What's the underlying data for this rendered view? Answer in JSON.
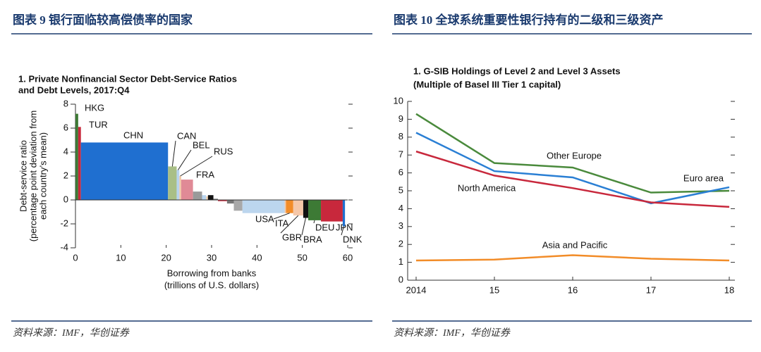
{
  "chart_data": [
    {
      "type": "mekko",
      "header": "图表 9 银行面临较高偿债率的国家",
      "source": "资料来源：IMF，华创证券",
      "title": [
        "1. Private Nonfinancial Sector Debt-Service Ratios",
        "and Debt Levels, 2017:Q4"
      ],
      "ylabel": [
        "Debt-service ratio",
        "(percentage point deviation from",
        "each country’s mean)"
      ],
      "xlabel": [
        "Borrowing from banks",
        "(trillions of U.S. dollars)"
      ],
      "categories": [
        "HKG",
        "TUR",
        "CHN",
        "CAN",
        "BEL",
        "RUS",
        "FRA",
        null,
        null,
        null,
        null,
        null,
        null,
        null,
        null,
        "USA",
        null,
        "ITA",
        "GBR",
        "BRA",
        "DEU",
        "JPN",
        "DNK"
      ],
      "widths": [
        0.6,
        0.6,
        19.2,
        1.9,
        0.6,
        0.4,
        2.6,
        2.0,
        0.9,
        0.4,
        1.2,
        1.0,
        2.0,
        1.5,
        1.9,
        9.3,
        0.3,
        1.6,
        2.2,
        1.1,
        2.8,
        4.8,
        0.5
      ],
      "values": [
        7.2,
        6.1,
        4.8,
        2.8,
        2.5,
        2.0,
        1.7,
        0.7,
        0.4,
        0.3,
        0.4,
        0.1,
        -0.1,
        -0.3,
        -0.9,
        -1.1,
        -1.1,
        -1.1,
        -1.3,
        -1.5,
        -1.7,
        -1.8,
        -2.2
      ],
      "colors": [
        "#3d7a35",
        "#c8283c",
        "#1f6fd0",
        "#a9bf86",
        "#b8d4ee",
        "#f0c8a8",
        "#e08a96",
        "#9a9a9a",
        "#b8d4ee",
        "#f0d0b0",
        "#111111",
        "#777777",
        "#c8283c",
        "#777777",
        "#a8a8a8",
        "#bcd6ee",
        "#f0c8a8",
        "#f28c28",
        "#f5c7a8",
        "#111111",
        "#3d7a35",
        "#c8283c",
        "#1f6fd0"
      ],
      "xlim": [
        0,
        60
      ],
      "xticks": [
        0,
        10,
        20,
        30,
        40,
        50,
        60
      ],
      "ylim": [
        -4,
        8
      ],
      "yticks": [
        -4,
        -2,
        0,
        2,
        4,
        6,
        8
      ]
    },
    {
      "type": "line",
      "header": "图表 10 全球系统重要性银行持有的二级和三级资产",
      "source": "资料来源：IMF，华创证券",
      "title": [
        "1. G-SIB Holdings of Level 2 and Level 3 Assets",
        "(Multiple of Basel III Tier 1 capital)"
      ],
      "x": [
        2014,
        2015,
        2016,
        2017,
        2018
      ],
      "xlim": [
        2014,
        2018
      ],
      "xticks": [
        2014,
        {
          "value": 2015,
          "label": "15"
        },
        {
          "value": 2016,
          "label": "16"
        },
        {
          "value": 2017,
          "label": "17"
        },
        {
          "value": 2018,
          "label": "18"
        }
      ],
      "ylim": [
        0,
        10
      ],
      "yticks": [
        0,
        1,
        2,
        3,
        4,
        5,
        6,
        7,
        8,
        9,
        10
      ],
      "series": [
        {
          "name": "Other Europe",
          "color": "#4a8a3c",
          "values": [
            9.3,
            6.55,
            6.3,
            4.9,
            5.0
          ]
        },
        {
          "name": "Euro area",
          "color": "#2a7fd4",
          "values": [
            8.25,
            6.1,
            5.75,
            4.3,
            5.2
          ]
        },
        {
          "name": "North America",
          "color": "#c8283c",
          "values": [
            7.2,
            5.85,
            5.15,
            4.35,
            4.1
          ]
        },
        {
          "name": "Asia and Pacific",
          "color": "#f28c28",
          "values": [
            1.1,
            1.15,
            1.4,
            1.2,
            1.1
          ]
        }
      ]
    }
  ]
}
